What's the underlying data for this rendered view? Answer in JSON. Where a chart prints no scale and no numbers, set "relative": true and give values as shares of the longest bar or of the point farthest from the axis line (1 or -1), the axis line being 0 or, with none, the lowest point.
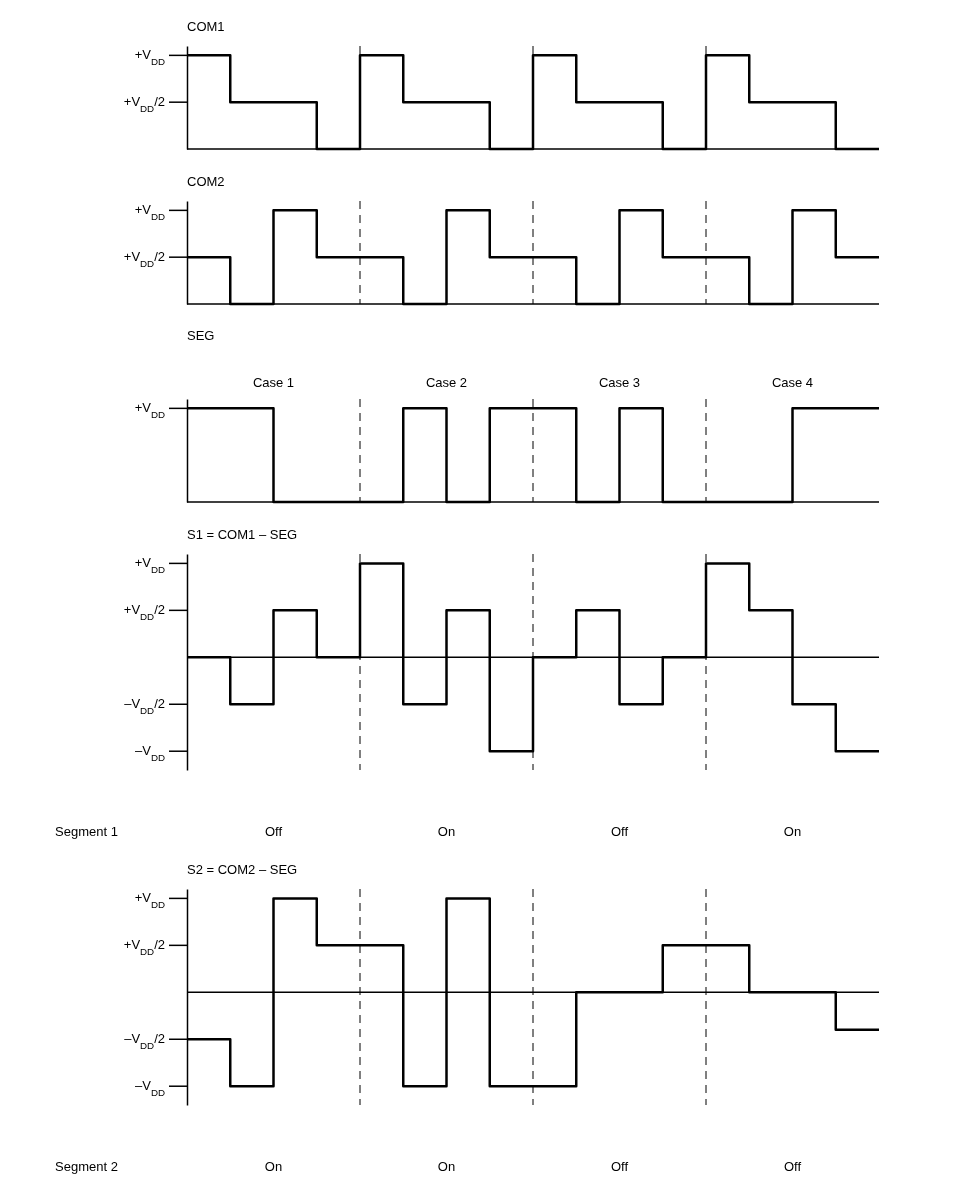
{
  "chart_data": [
    {
      "type": "step",
      "title": "COM1",
      "grid": "x",
      "relative": true,
      "categories": [
        null,
        null,
        null,
        null,
        null,
        null,
        null,
        null,
        null,
        null,
        null,
        null,
        null,
        null,
        null,
        null,
        null
      ],
      "series": [
        {
          "color": "#000000",
          "values": [
            1,
            0.5,
            0.5,
            0,
            1,
            0.5,
            0.5,
            0,
            1,
            0.5,
            0.5,
            0,
            1,
            0.5,
            0.5,
            0,
            0
          ]
        }
      ],
      "ref_lines": [
        {
          "axis": "y",
          "value": 1,
          "label": "+V$_{DD}$"
        },
        {
          "axis": "y",
          "value": 0.5,
          "label": "+V$_{DD}$/2"
        }
      ]
    },
    {
      "type": "step",
      "title": "COM2",
      "grid": "x",
      "relative": true,
      "categories": [
        null,
        null,
        null,
        null,
        null,
        null,
        null,
        null,
        null,
        null,
        null,
        null,
        null,
        null,
        null,
        null,
        null
      ],
      "series": [
        {
          "color": "#000000",
          "values": [
            0.5,
            0,
            1,
            0.5,
            0.5,
            0,
            1,
            0.5,
            0.5,
            0,
            1,
            0.5,
            0.5,
            0,
            1,
            0.5,
            0.5
          ]
        }
      ],
      "ref_lines": [
        {
          "axis": "y",
          "value": 1,
          "label": "+V$_{DD}$"
        },
        {
          "axis": "y",
          "value": 0.5,
          "label": "+V$_{DD}$/2"
        }
      ]
    },
    {
      "type": "step",
      "title": "SEG",
      "grid": "x",
      "relative": true,
      "categories": [
        null,
        null,
        null,
        null,
        null,
        null,
        null,
        null,
        null,
        null,
        null,
        null,
        null,
        null,
        null,
        null,
        null
      ],
      "series": [
        {
          "color": "#000000",
          "values": [
            1,
            1,
            0,
            0,
            0,
            1,
            0,
            1,
            1,
            0,
            1,
            0,
            0,
            0,
            1,
            1,
            1
          ]
        }
      ],
      "ref_lines": [
        {
          "axis": "y",
          "value": 1,
          "label": "+V$_{DD}$"
        }
      ],
      "annotations": [
        "Case 1",
        "Case 2",
        "Case 3",
        "Case 4"
      ]
    },
    {
      "type": "step",
      "title": "S1 = COM1 – SEG",
      "xlabel": "Segment 1",
      "grid": "x",
      "relative": true,
      "categories": [
        null,
        null,
        null,
        null,
        null,
        null,
        null,
        null,
        null,
        null,
        null,
        null,
        null,
        null,
        null,
        null,
        null
      ],
      "series": [
        {
          "color": "#000000",
          "values": [
            0,
            -0.5,
            0.5,
            0,
            1,
            -0.5,
            0.5,
            -1,
            0,
            0.5,
            -0.5,
            0,
            1,
            0.5,
            -0.5,
            -1,
            -1
          ]
        }
      ],
      "ref_lines": [
        {
          "axis": "y",
          "value": 1,
          "label": "+V$_{DD}$"
        },
        {
          "axis": "y",
          "value": 0.5,
          "label": "+V$_{DD}$/2"
        },
        {
          "axis": "y",
          "value": -0.5,
          "label": "–V$_{DD}$/2"
        },
        {
          "axis": "y",
          "value": -1,
          "label": "–V$_{DD}$"
        }
      ],
      "annotations": [
        "Off",
        "On",
        "Off",
        "On"
      ]
    },
    {
      "type": "step",
      "title": "S2 = COM2 – SEG",
      "xlabel": "Segment 2",
      "grid": "x",
      "relative": true,
      "categories": [
        null,
        null,
        null,
        null,
        null,
        null,
        null,
        null,
        null,
        null,
        null,
        null,
        null,
        null,
        null,
        null,
        null
      ],
      "series": [
        {
          "color": "#000000",
          "values": [
            -0.5,
            -1,
            1,
            0.5,
            0.5,
            -1,
            1,
            -1,
            -1,
            0,
            0,
            0.5,
            0.5,
            0,
            0,
            -0.4,
            -0.4
          ]
        }
      ],
      "ref_lines": [
        {
          "axis": "y",
          "value": 1,
          "label": "+V$_{DD}$"
        },
        {
          "axis": "y",
          "value": 0.5,
          "label": "+V$_{DD}$/2"
        },
        {
          "axis": "y",
          "value": -0.5,
          "label": "–V$_{DD}$/2"
        },
        {
          "axis": "y",
          "value": -1,
          "label": "–V$_{DD}$"
        }
      ],
      "annotations": [
        "On",
        "On",
        "Off",
        "Off"
      ]
    }
  ]
}
